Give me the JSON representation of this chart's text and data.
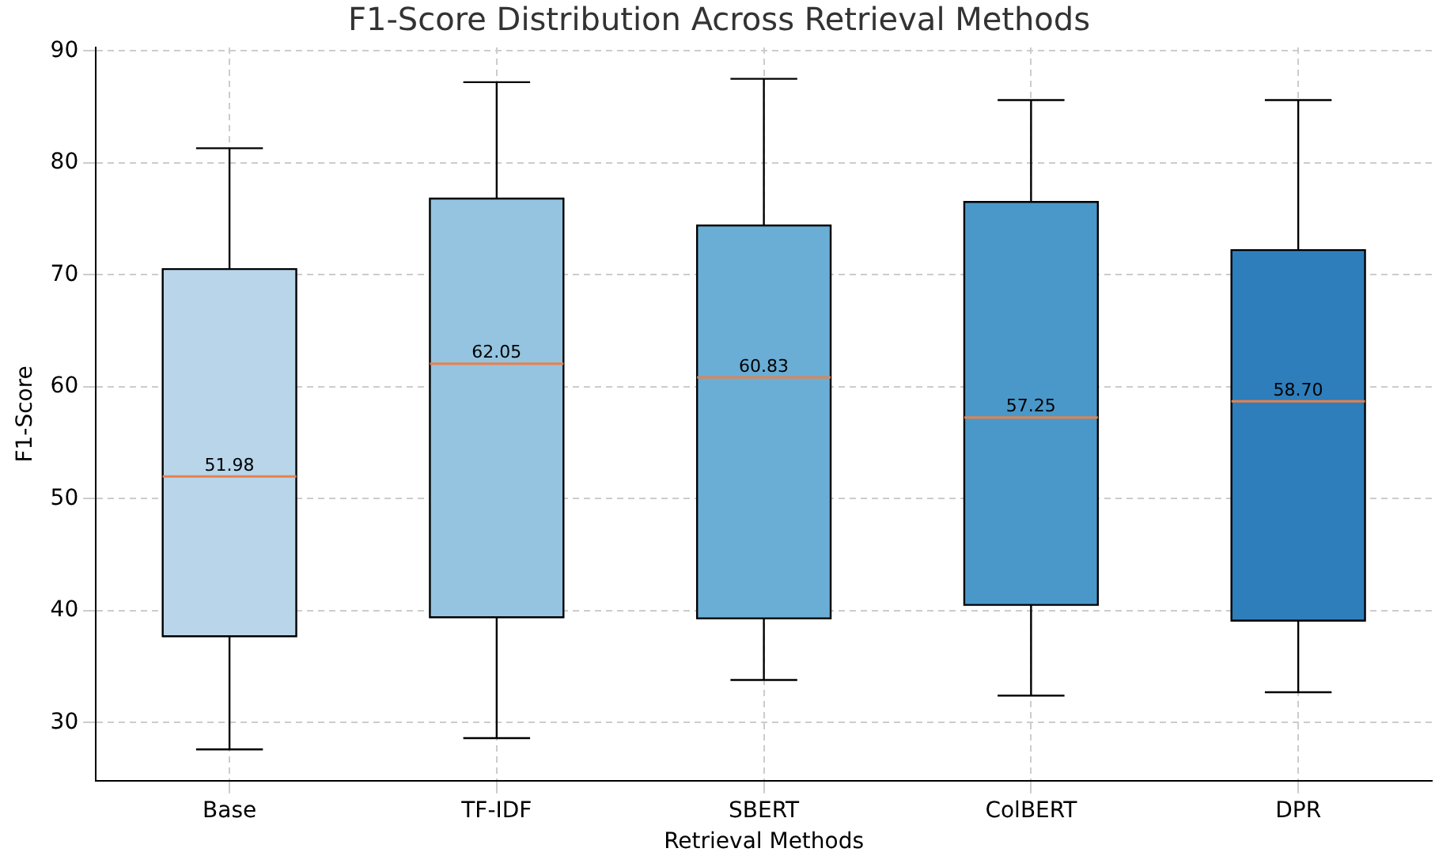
{
  "chart_data": {
    "type": "box",
    "title": "F1-Score Distribution Across Retrieval Methods",
    "xlabel": "Retrieval Methods",
    "ylabel": "F1-Score",
    "categories": [
      "Base",
      "TF-IDF",
      "SBERT",
      "ColBERT",
      "DPR"
    ],
    "colors": [
      "#b8d5ea",
      "#94c4e0",
      "#6aaed6",
      "#4a98c9",
      "#2e7ebc"
    ],
    "boxes": [
      {
        "low": 27.6,
        "q1": 37.7,
        "median": 51.98,
        "q3": 70.5,
        "high": 81.3
      },
      {
        "low": 28.6,
        "q1": 39.4,
        "median": 62.05,
        "q3": 76.8,
        "high": 87.2
      },
      {
        "low": 33.8,
        "q1": 39.3,
        "median": 60.83,
        "q3": 74.4,
        "high": 87.5
      },
      {
        "low": 32.4,
        "q1": 40.5,
        "median": 57.25,
        "q3": 76.5,
        "high": 85.6
      },
      {
        "low": 32.7,
        "q1": 39.1,
        "median": 58.7,
        "q3": 72.2,
        "high": 85.6
      }
    ],
    "value_labels": [
      "51.98",
      "62.05",
      "60.83",
      "57.25",
      "58.70"
    ],
    "ylim": [
      24.8,
      90.3
    ],
    "yticks": [
      30,
      40,
      50,
      60,
      70,
      80,
      90
    ],
    "grid": true,
    "legend": false
  }
}
